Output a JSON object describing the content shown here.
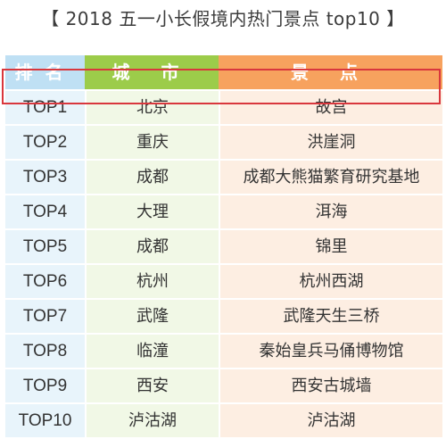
{
  "title": "【 2018 五一小长假境内热门景点 top10 】",
  "headers": {
    "rank": "排名",
    "city": "城 市",
    "spot": "景 点"
  },
  "rows": [
    {
      "rank": "TOP1",
      "city": "北京",
      "spot": "故宫"
    },
    {
      "rank": "TOP2",
      "city": "重庆",
      "spot": "洪崖洞"
    },
    {
      "rank": "TOP3",
      "city": "成都",
      "spot": "成都大熊猫繁育研究基地"
    },
    {
      "rank": "TOP4",
      "city": "大理",
      "spot": "洱海"
    },
    {
      "rank": "TOP5",
      "city": "成都",
      "spot": "锦里"
    },
    {
      "rank": "TOP6",
      "city": "杭州",
      "spot": "杭州西湖"
    },
    {
      "rank": "TOP7",
      "city": "武隆",
      "spot": "武隆天生三桥"
    },
    {
      "rank": "TOP8",
      "city": "临潼",
      "spot": "秦始皇兵马俑博物馆"
    },
    {
      "rank": "TOP9",
      "city": "西安",
      "spot": "西安古城墙"
    },
    {
      "rank": "TOP10",
      "city": "泸沽湖",
      "spot": "泸沽湖"
    }
  ],
  "highlighted_rank": "TOP2",
  "colors": {
    "header_rank": "#bfe0f4",
    "header_city": "#9ccc4a",
    "header_spot": "#f7a25e",
    "highlight_border": "#d9373d"
  }
}
